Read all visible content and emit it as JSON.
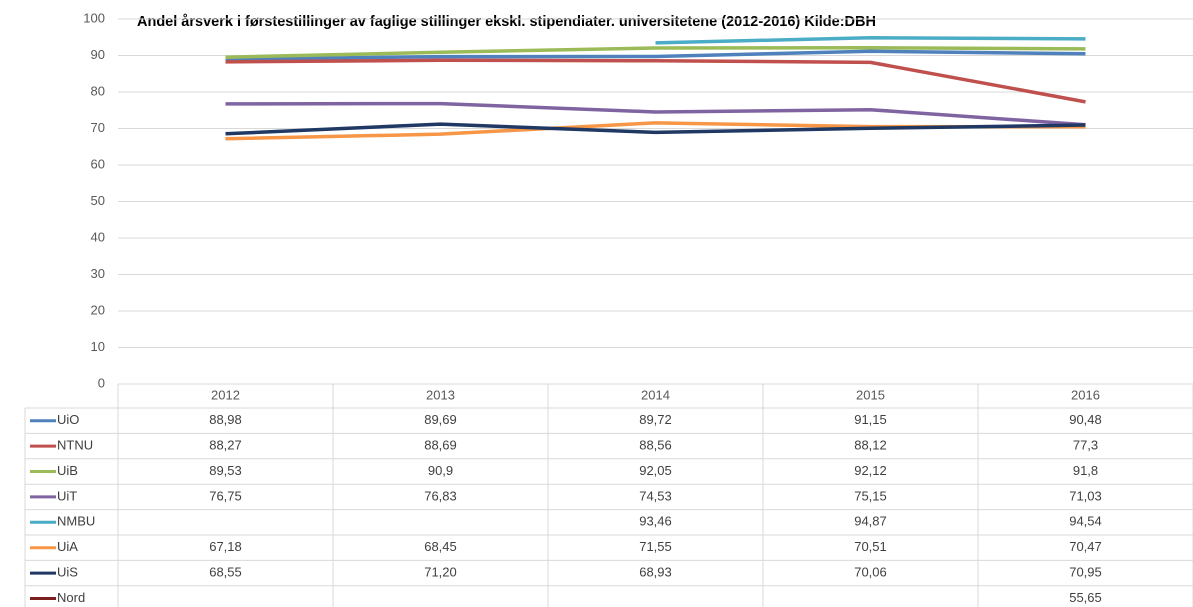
{
  "chart_data": {
    "type": "line",
    "title": "Andel årsverk i førstestillinger av faglige stillinger ekskl. stipendiater. universitetene (2012-2016) Kilde:DBH",
    "categories": [
      "2012",
      "2013",
      "2014",
      "2015",
      "2016"
    ],
    "ylim": [
      0,
      100
    ],
    "yticks": [
      0,
      10,
      20,
      30,
      40,
      50,
      60,
      70,
      80,
      90,
      100
    ],
    "grid": true,
    "series": [
      {
        "name": "UiO",
        "color": "#4f81bd",
        "values": [
          88.98,
          89.69,
          89.72,
          91.15,
          90.48
        ],
        "value_labels": [
          "88,98",
          "89,69",
          "89,72",
          "91,15",
          "90,48"
        ]
      },
      {
        "name": "NTNU",
        "color": "#c0504d",
        "values": [
          88.27,
          88.69,
          88.56,
          88.12,
          77.3
        ],
        "value_labels": [
          "88,27",
          "88,69",
          "88,56",
          "88,12",
          "77,3"
        ]
      },
      {
        "name": "UiB",
        "color": "#9bbb59",
        "values": [
          89.53,
          90.9,
          92.05,
          92.12,
          91.8
        ],
        "value_labels": [
          "89,53",
          "90,9",
          "92,05",
          "92,12",
          "91,8"
        ]
      },
      {
        "name": "UiT",
        "color": "#8064a2",
        "values": [
          76.75,
          76.83,
          74.53,
          75.15,
          71.03
        ],
        "value_labels": [
          "76,75",
          "76,83",
          "74,53",
          "75,15",
          "71,03"
        ]
      },
      {
        "name": "NMBU",
        "color": "#4bacc6",
        "values": [
          null,
          null,
          93.46,
          94.87,
          94.54
        ],
        "value_labels": [
          null,
          null,
          "93,46",
          "94,87",
          "94,54"
        ]
      },
      {
        "name": "UiA",
        "color": "#f79646",
        "values": [
          67.18,
          68.45,
          71.55,
          70.51,
          70.47
        ],
        "value_labels": [
          "67,18",
          "68,45",
          "71,55",
          "70,51",
          "70,47"
        ]
      },
      {
        "name": "UiS",
        "color": "#1f3864",
        "values": [
          68.55,
          71.2,
          68.93,
          70.06,
          70.95
        ],
        "value_labels": [
          "68,55",
          "71,20",
          "68,93",
          "70,06",
          "70,95"
        ]
      },
      {
        "name": "Nord",
        "color": "#7b1f1f",
        "values": [
          null,
          null,
          null,
          null,
          55.65
        ],
        "value_labels": [
          null,
          null,
          null,
          null,
          "55,65"
        ]
      }
    ]
  }
}
